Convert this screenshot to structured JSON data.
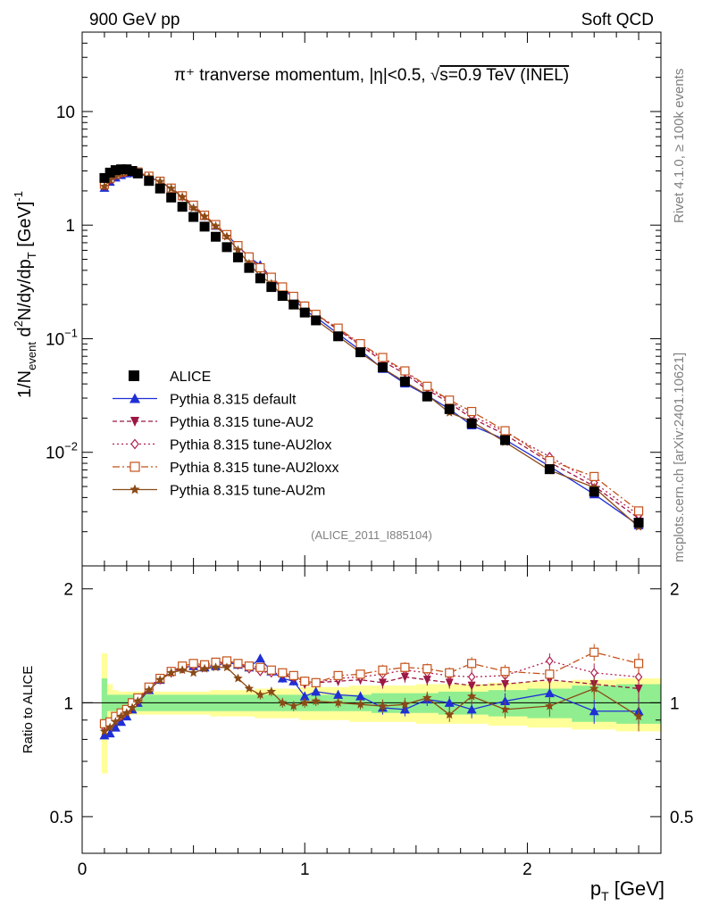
{
  "header": {
    "left": "900 GeV pp",
    "right": "Soft QCD"
  },
  "side_labels": {
    "rivet": "Rivet 4.1.0, ≥ 100k events",
    "mcplots": "mcplots.cern.ch [arXiv:2401.10621]"
  },
  "colors": {
    "alice": "#000000",
    "default": "#1f2fd6",
    "au2": "#9b1744",
    "au2lox": "#b0204e",
    "au2loxx": "#c4521a",
    "au2m": "#8a4a17",
    "band_inner": "#90ee90",
    "band_outer": "#ffff99"
  },
  "chart_data": {
    "type": "line",
    "title": "π⁺ tranverse momentum, |η|<0.5, √s=0.9 TeV (INEL)",
    "title_parts": {
      "prefix": "π⁺ tranverse momentum, ",
      "eta": "|η|<0.5, ",
      "sqrt": "√",
      "suffix": "s=0.9 TeV (INEL)"
    },
    "watermark": "(ALICE_2011_I885104)",
    "xlabel": "p_T [GeV]",
    "xlabel_parts": {
      "main": "p",
      "sub": "T",
      "unit": " [GeV]"
    },
    "ylabel": "1/N_event d²N/dy/dp_T [GeV]⁻¹",
    "ylabel_parts": {
      "a": "1/N",
      "a_sub": "event",
      "b": " d",
      "b_sup": "2",
      "c": "N/dy/dp",
      "c_sub": "T",
      "d": " [GeV]",
      "d_sup": "-1"
    },
    "ratio_ylabel": "Ratio to ALICE",
    "xlim": [
      0,
      2.6
    ],
    "ylim": [
      0.001,
      50
    ],
    "ratio_ylim": [
      0.4,
      2.3
    ],
    "x_ticks": [
      0,
      1,
      2
    ],
    "x_tick_labels": [
      "0",
      "1",
      "2"
    ],
    "y_ticks": [
      0.01,
      0.1,
      1,
      10
    ],
    "y_tick_labels": [
      {
        "base": "10",
        "exp": "−2"
      },
      {
        "base": "10",
        "exp": "−1"
      },
      {
        "base": "1",
        "exp": ""
      },
      {
        "base": "10",
        "exp": ""
      }
    ],
    "ratio_ticks": [
      0.5,
      1,
      2
    ],
    "ratio_tick_labels": [
      "0.5",
      "1",
      "2"
    ],
    "x": [
      0.1,
      0.125,
      0.15,
      0.175,
      0.2,
      0.225,
      0.25,
      0.3,
      0.35,
      0.4,
      0.45,
      0.5,
      0.55,
      0.6,
      0.65,
      0.7,
      0.75,
      0.8,
      0.85,
      0.9,
      0.95,
      1.0,
      1.05,
      1.15,
      1.25,
      1.35,
      1.45,
      1.55,
      1.65,
      1.75,
      1.9,
      2.1,
      2.3,
      2.5
    ],
    "reference": {
      "name": "ALICE",
      "values": [
        2.6,
        2.9,
        3.05,
        3.1,
        3.1,
        3.0,
        2.85,
        2.45,
        2.1,
        1.75,
        1.45,
        1.18,
        0.97,
        0.79,
        0.64,
        0.52,
        0.42,
        0.34,
        0.285,
        0.238,
        0.2,
        0.17,
        0.145,
        0.105,
        0.076,
        0.056,
        0.042,
        0.031,
        0.024,
        0.018,
        0.0128,
        0.0071,
        0.0045,
        0.0024
      ],
      "band_inner": [
        0.16,
        0.05,
        0.05,
        0.05,
        0.05,
        0.05,
        0.05,
        0.05,
        0.05,
        0.05,
        0.05,
        0.05,
        0.05,
        0.05,
        0.05,
        0.05,
        0.05,
        0.05,
        0.05,
        0.05,
        0.05,
        0.05,
        0.05,
        0.05,
        0.05,
        0.06,
        0.06,
        0.06,
        0.07,
        0.07,
        0.08,
        0.09,
        0.11,
        0.12
      ],
      "band_outer": [
        0.35,
        0.12,
        0.08,
        0.07,
        0.07,
        0.07,
        0.07,
        0.07,
        0.07,
        0.07,
        0.07,
        0.07,
        0.07,
        0.08,
        0.08,
        0.08,
        0.08,
        0.09,
        0.09,
        0.09,
        0.09,
        0.1,
        0.1,
        0.1,
        0.11,
        0.11,
        0.11,
        0.12,
        0.12,
        0.12,
        0.13,
        0.14,
        0.15,
        0.16
      ]
    },
    "series": [
      {
        "name": "Pythia 8.315 default",
        "marker": "triangle-up",
        "dash": "",
        "color_key": "default",
        "ratio": [
          0.82,
          0.83,
          0.86,
          0.89,
          0.92,
          0.96,
          1.0,
          1.08,
          1.15,
          1.21,
          1.24,
          1.25,
          1.24,
          1.25,
          1.28,
          1.26,
          1.24,
          1.31,
          1.21,
          1.16,
          1.14,
          1.04,
          1.07,
          1.05,
          1.04,
          0.97,
          0.96,
          1.02,
          1.0,
          0.96,
          1.01,
          1.06,
          0.95,
          0.95
        ],
        "ratio_err": [
          0.02,
          0.02,
          0.02,
          0.02,
          0.02,
          0.02,
          0.02,
          0.02,
          0.02,
          0.02,
          0.02,
          0.02,
          0.02,
          0.02,
          0.02,
          0.02,
          0.02,
          0.03,
          0.03,
          0.03,
          0.03,
          0.03,
          0.03,
          0.03,
          0.03,
          0.04,
          0.04,
          0.04,
          0.04,
          0.05,
          0.05,
          0.06,
          0.07,
          0.08
        ]
      },
      {
        "name": "Pythia 8.315 tune-AU2",
        "marker": "triangle-down",
        "dash": "5,3",
        "color_key": "au2",
        "ratio": [
          0.86,
          0.88,
          0.9,
          0.93,
          0.95,
          0.98,
          1.01,
          1.1,
          1.16,
          1.2,
          1.24,
          1.26,
          1.24,
          1.27,
          1.29,
          1.27,
          1.24,
          1.22,
          1.2,
          1.19,
          1.16,
          1.12,
          1.13,
          1.14,
          1.15,
          1.13,
          1.17,
          1.15,
          1.13,
          1.11,
          1.12,
          1.15,
          1.12,
          1.09
        ],
        "ratio_err": [
          0.02,
          0.02,
          0.02,
          0.02,
          0.02,
          0.02,
          0.02,
          0.02,
          0.02,
          0.02,
          0.02,
          0.02,
          0.02,
          0.02,
          0.02,
          0.02,
          0.02,
          0.03,
          0.03,
          0.03,
          0.03,
          0.03,
          0.03,
          0.03,
          0.03,
          0.04,
          0.04,
          0.04,
          0.04,
          0.05,
          0.05,
          0.06,
          0.07,
          0.08
        ]
      },
      {
        "name": "Pythia 8.315 tune-AU2lox",
        "marker": "diamond-open",
        "dash": "2,3",
        "color_key": "au2lox",
        "ratio": [
          0.86,
          0.87,
          0.9,
          0.92,
          0.95,
          0.99,
          1.02,
          1.09,
          1.15,
          1.2,
          1.23,
          1.25,
          1.25,
          1.27,
          1.28,
          1.26,
          1.23,
          1.21,
          1.2,
          1.19,
          1.17,
          1.14,
          1.13,
          1.16,
          1.17,
          1.19,
          1.22,
          1.2,
          1.18,
          1.17,
          1.18,
          1.29,
          1.2,
          1.17
        ],
        "ratio_err": [
          0.02,
          0.02,
          0.02,
          0.02,
          0.02,
          0.02,
          0.02,
          0.02,
          0.02,
          0.02,
          0.02,
          0.02,
          0.02,
          0.02,
          0.02,
          0.02,
          0.02,
          0.03,
          0.03,
          0.03,
          0.03,
          0.03,
          0.03,
          0.03,
          0.03,
          0.04,
          0.04,
          0.04,
          0.04,
          0.05,
          0.05,
          0.06,
          0.07,
          0.08
        ]
      },
      {
        "name": "Pythia 8.315 tune-AU2loxx",
        "marker": "square-open",
        "dash": "8,3,2,3",
        "color_key": "au2loxx",
        "ratio": [
          0.88,
          0.89,
          0.92,
          0.94,
          0.96,
          1.0,
          1.03,
          1.1,
          1.16,
          1.21,
          1.25,
          1.27,
          1.26,
          1.28,
          1.29,
          1.27,
          1.25,
          1.24,
          1.22,
          1.2,
          1.18,
          1.14,
          1.13,
          1.18,
          1.19,
          1.22,
          1.24,
          1.23,
          1.2,
          1.27,
          1.21,
          1.19,
          1.36,
          1.27
        ],
        "ratio_err": [
          0.02,
          0.02,
          0.02,
          0.02,
          0.02,
          0.02,
          0.02,
          0.02,
          0.02,
          0.02,
          0.02,
          0.02,
          0.02,
          0.02,
          0.02,
          0.02,
          0.02,
          0.03,
          0.03,
          0.03,
          0.03,
          0.03,
          0.03,
          0.03,
          0.03,
          0.04,
          0.04,
          0.04,
          0.04,
          0.05,
          0.05,
          0.06,
          0.07,
          0.08
        ]
      },
      {
        "name": "Pythia 8.315 tune-AU2m",
        "marker": "star",
        "dash": "",
        "color_key": "au2m",
        "ratio": [
          0.84,
          0.86,
          0.89,
          0.92,
          0.94,
          0.97,
          1.01,
          1.08,
          1.15,
          1.2,
          1.22,
          1.2,
          1.23,
          1.24,
          1.24,
          1.16,
          1.09,
          1.05,
          1.07,
          1.0,
          0.98,
          1.0,
          1.01,
          1.0,
          0.99,
          0.98,
          0.99,
          1.03,
          0.93,
          1.04,
          0.96,
          0.98,
          1.09,
          0.92
        ],
        "ratio_err": [
          0.02,
          0.02,
          0.02,
          0.02,
          0.02,
          0.02,
          0.02,
          0.02,
          0.02,
          0.02,
          0.02,
          0.02,
          0.02,
          0.02,
          0.02,
          0.02,
          0.02,
          0.03,
          0.03,
          0.03,
          0.03,
          0.03,
          0.03,
          0.03,
          0.03,
          0.04,
          0.04,
          0.04,
          0.04,
          0.05,
          0.05,
          0.06,
          0.07,
          0.08
        ]
      }
    ],
    "legend_position": "lower-left"
  }
}
